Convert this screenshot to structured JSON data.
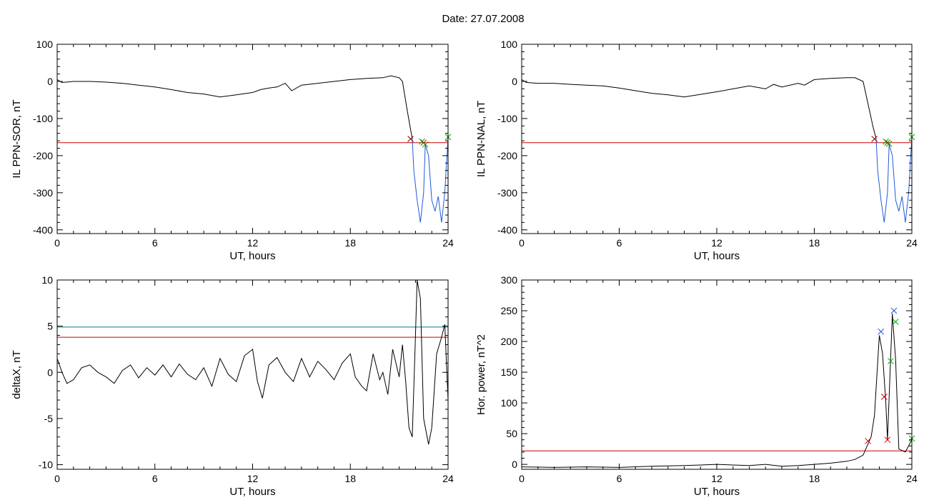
{
  "page": {
    "title": "Date:  27.07.2008"
  },
  "chart_data": [
    {
      "type": "line",
      "xlabel": "UT, hours",
      "ylabel": "IL PPN-SOR, nT",
      "xlim": [
        0,
        24
      ],
      "ylim": [
        -410,
        100
      ],
      "xticks": [
        0,
        6,
        12,
        18,
        24
      ],
      "yticks": [
        100,
        0,
        -100,
        -200,
        -300,
        -400
      ],
      "ytick_labels": [
        "100",
        "0",
        "-100",
        "-200",
        "-300",
        "-400"
      ],
      "series": [
        {
          "color": "#000000",
          "points": [
            [
              0,
              5
            ],
            [
              0.3,
              -3
            ],
            [
              1,
              0
            ],
            [
              2,
              0
            ],
            [
              3,
              -2
            ],
            [
              4,
              -5
            ],
            [
              5,
              -10
            ],
            [
              6,
              -15
            ],
            [
              7,
              -22
            ],
            [
              8,
              -30
            ],
            [
              9,
              -34
            ],
            [
              10,
              -42
            ],
            [
              11,
              -36
            ],
            [
              12,
              -30
            ],
            [
              12.5,
              -22
            ],
            [
              13,
              -18
            ],
            [
              13.5,
              -15
            ],
            [
              14,
              -5
            ],
            [
              14.4,
              -25
            ],
            [
              15,
              -10
            ],
            [
              16,
              -5
            ],
            [
              17,
              0
            ],
            [
              18,
              5
            ],
            [
              19,
              8
            ],
            [
              20,
              10
            ],
            [
              20.5,
              15
            ],
            [
              21,
              10
            ],
            [
              21.2,
              0
            ],
            [
              21.5,
              -80
            ],
            [
              21.7,
              -130
            ],
            [
              21.8,
              -155
            ]
          ]
        },
        {
          "color": "#1f5bd6",
          "points": [
            [
              21.8,
              -155
            ],
            [
              21.9,
              -240
            ],
            [
              22.1,
              -320
            ],
            [
              22.3,
              -380
            ],
            [
              22.5,
              -300
            ],
            [
              22.6,
              -170
            ],
            [
              22.8,
              -200
            ],
            [
              23,
              -320
            ],
            [
              23.2,
              -350
            ],
            [
              23.4,
              -310
            ],
            [
              23.6,
              -380
            ],
            [
              23.8,
              -300
            ],
            [
              24,
              -150
            ]
          ]
        }
      ],
      "thresholds": [
        {
          "value": -165,
          "color": "#cc0000"
        }
      ],
      "markers": [
        {
          "x": 21.7,
          "y": -155,
          "color": "#8b0000"
        },
        {
          "x": 22.4,
          "y": -162,
          "color": "#00aa00"
        },
        {
          "x": 22.5,
          "y": -165,
          "color": "#cc0000"
        },
        {
          "x": 22.6,
          "y": -170,
          "color": "#00aa00"
        },
        {
          "x": 24,
          "y": -150,
          "color": "#00aa00"
        }
      ]
    },
    {
      "type": "line",
      "xlabel": "UT, hours",
      "ylabel": "IL PPN-NAL, nT",
      "xlim": [
        0,
        24
      ],
      "ylim": [
        -410,
        100
      ],
      "xticks": [
        0,
        6,
        12,
        18,
        24
      ],
      "yticks": [
        100,
        0,
        -100,
        -200,
        -300,
        -400
      ],
      "ytick_labels": [
        "100",
        "0",
        "-100",
        "-200",
        "-300",
        "-400"
      ],
      "series": [
        {
          "color": "#000000",
          "points": [
            [
              0,
              5
            ],
            [
              0.3,
              -3
            ],
            [
              1,
              -5
            ],
            [
              2,
              -5
            ],
            [
              3,
              -8
            ],
            [
              4,
              -10
            ],
            [
              5,
              -12
            ],
            [
              6,
              -18
            ],
            [
              7,
              -25
            ],
            [
              8,
              -32
            ],
            [
              9,
              -36
            ],
            [
              10,
              -42
            ],
            [
              11,
              -35
            ],
            [
              12,
              -28
            ],
            [
              13,
              -20
            ],
            [
              14,
              -12
            ],
            [
              15,
              -20
            ],
            [
              15.5,
              -8
            ],
            [
              16,
              -15
            ],
            [
              17,
              -5
            ],
            [
              17.4,
              -10
            ],
            [
              18,
              5
            ],
            [
              19,
              8
            ],
            [
              20,
              10
            ],
            [
              20.5,
              10
            ],
            [
              21,
              0
            ],
            [
              21.3,
              -60
            ],
            [
              21.6,
              -120
            ],
            [
              21.8,
              -155
            ]
          ]
        },
        {
          "color": "#1f5bd6",
          "points": [
            [
              21.8,
              -155
            ],
            [
              21.9,
              -240
            ],
            [
              22.1,
              -320
            ],
            [
              22.3,
              -380
            ],
            [
              22.5,
              -300
            ],
            [
              22.6,
              -170
            ],
            [
              22.8,
              -200
            ],
            [
              23,
              -320
            ],
            [
              23.2,
              -350
            ],
            [
              23.4,
              -310
            ],
            [
              23.6,
              -380
            ],
            [
              23.8,
              -300
            ],
            [
              24,
              -150
            ]
          ]
        }
      ],
      "thresholds": [
        {
          "value": -165,
          "color": "#cc0000"
        }
      ],
      "markers": [
        {
          "x": 21.7,
          "y": -155,
          "color": "#8b0000"
        },
        {
          "x": 22.4,
          "y": -162,
          "color": "#00aa00"
        },
        {
          "x": 22.5,
          "y": -165,
          "color": "#cc0000"
        },
        {
          "x": 22.6,
          "y": -168,
          "color": "#00aa00"
        },
        {
          "x": 24,
          "y": -150,
          "color": "#00aa00"
        }
      ]
    },
    {
      "type": "line",
      "xlabel": "UT, hours",
      "ylabel": "deltaX, nT",
      "xlim": [
        0,
        24
      ],
      "ylim": [
        -10.5,
        10
      ],
      "xticks": [
        0,
        6,
        12,
        18,
        24
      ],
      "yticks": [
        10,
        5,
        0,
        -5,
        -10
      ],
      "ytick_labels": [
        "10",
        "5",
        "0",
        "-5",
        "-10"
      ],
      "series": [
        {
          "color": "#000000",
          "points": [
            [
              0,
              1.5
            ],
            [
              0.3,
              0
            ],
            [
              0.6,
              -1.2
            ],
            [
              1,
              -0.8
            ],
            [
              1.5,
              0.5
            ],
            [
              2,
              0.8
            ],
            [
              2.5,
              0
            ],
            [
              3,
              -0.5
            ],
            [
              3.5,
              -1.2
            ],
            [
              4,
              0.2
            ],
            [
              4.5,
              0.8
            ],
            [
              5,
              -0.6
            ],
            [
              5.5,
              0.5
            ],
            [
              6,
              -0.3
            ],
            [
              6.5,
              0.8
            ],
            [
              7,
              -0.5
            ],
            [
              7.5,
              0.9
            ],
            [
              8,
              -0.2
            ],
            [
              8.5,
              -0.8
            ],
            [
              9,
              0.5
            ],
            [
              9.5,
              -1.5
            ],
            [
              10,
              1.5
            ],
            [
              10.5,
              -0.2
            ],
            [
              11,
              -1
            ],
            [
              11.5,
              1.8
            ],
            [
              12,
              2.5
            ],
            [
              12.3,
              -1
            ],
            [
              12.6,
              -2.8
            ],
            [
              13,
              0.8
            ],
            [
              13.5,
              1.6
            ],
            [
              14,
              0
            ],
            [
              14.5,
              -1
            ],
            [
              15,
              1.5
            ],
            [
              15.5,
              -0.5
            ],
            [
              16,
              1.2
            ],
            [
              16.5,
              0.3
            ],
            [
              17,
              -0.8
            ],
            [
              17.5,
              1
            ],
            [
              18,
              2
            ],
            [
              18.3,
              -0.5
            ],
            [
              18.7,
              -1.5
            ],
            [
              19,
              -2
            ],
            [
              19.4,
              2
            ],
            [
              19.8,
              -0.8
            ],
            [
              20,
              0
            ],
            [
              20.3,
              -2.4
            ],
            [
              20.6,
              2.5
            ],
            [
              21,
              -0.5
            ],
            [
              21.2,
              3
            ],
            [
              21.4,
              -1
            ],
            [
              21.6,
              -6
            ],
            [
              21.8,
              -7
            ],
            [
              22,
              4
            ],
            [
              22.1,
              10
            ],
            [
              22.3,
              8
            ],
            [
              22.5,
              -5
            ],
            [
              22.8,
              -7.8
            ],
            [
              23,
              -6
            ],
            [
              23.3,
              2
            ],
            [
              23.6,
              3.8
            ],
            [
              23.8,
              5.2
            ],
            [
              24,
              -3
            ]
          ]
        }
      ],
      "thresholds": [
        {
          "value": 4.9,
          "color": "#008080"
        },
        {
          "value": 3.8,
          "color": "#cc0000"
        }
      ],
      "markers": []
    },
    {
      "type": "line",
      "xlabel": "UT, hours",
      "ylabel": "Hor. power, nT^2",
      "xlim": [
        0,
        24
      ],
      "ylim": [
        -8,
        300
      ],
      "xticks": [
        0,
        6,
        12,
        18,
        24
      ],
      "yticks": [
        300,
        250,
        200,
        150,
        100,
        50,
        0
      ],
      "ytick_labels": [
        "300",
        "250",
        "200",
        "150",
        "100",
        "50",
        "0"
      ],
      "series": [
        {
          "color": "#000000",
          "points": [
            [
              0,
              -4
            ],
            [
              2,
              -5
            ],
            [
              4,
              -4
            ],
            [
              6,
              -5
            ],
            [
              8,
              -3
            ],
            [
              10,
              -2
            ],
            [
              11,
              -1
            ],
            [
              12,
              0
            ],
            [
              13,
              -1
            ],
            [
              14,
              -2
            ],
            [
              15,
              0
            ],
            [
              16,
              -3
            ],
            [
              17,
              -2
            ],
            [
              18,
              0
            ],
            [
              19,
              2
            ],
            [
              20,
              5
            ],
            [
              20.5,
              8
            ],
            [
              21,
              15
            ],
            [
              21.5,
              45
            ],
            [
              21.7,
              80
            ],
            [
              22,
              210
            ],
            [
              22.2,
              180
            ],
            [
              22.4,
              100
            ],
            [
              22.5,
              40
            ],
            [
              22.8,
              245
            ],
            [
              23,
              170
            ],
            [
              23.2,
              25
            ],
            [
              23.6,
              20
            ],
            [
              24,
              40
            ]
          ]
        }
      ],
      "thresholds": [
        {
          "value": 22,
          "color": "#cc0000"
        }
      ],
      "markers": [
        {
          "x": 21.3,
          "y": 38,
          "color": "#cc0000"
        },
        {
          "x": 22.1,
          "y": 216,
          "color": "#1f5bd6"
        },
        {
          "x": 22.3,
          "y": 110,
          "color": "#cc0000"
        },
        {
          "x": 22.5,
          "y": 40,
          "color": "#cc0000"
        },
        {
          "x": 22.7,
          "y": 168,
          "color": "#00aa00"
        },
        {
          "x": 22.9,
          "y": 250,
          "color": "#1f5bd6"
        },
        {
          "x": 23,
          "y": 232,
          "color": "#00aa00"
        },
        {
          "x": 24,
          "y": 42,
          "color": "#00aa00"
        }
      ]
    }
  ]
}
